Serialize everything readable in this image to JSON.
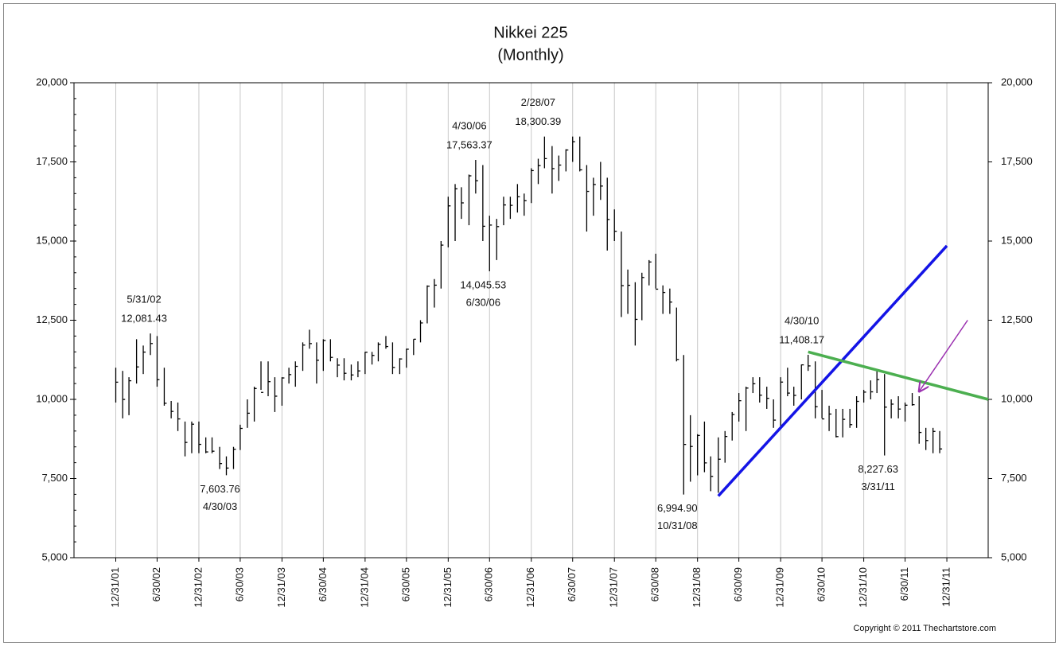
{
  "chart_data": {
    "type": "ohlc",
    "title": "Nikkei 225",
    "subtitle": "(Monthly)",
    "copyright": "Copyright © 2011 Thechartstore.com",
    "grid": "x",
    "bar_color": "#000000",
    "xlim": [
      "6/30/01",
      "6/30/12"
    ],
    "xticks": [
      "12/31/01",
      "6/30/02",
      "12/31/02",
      "6/30/03",
      "12/31/03",
      "6/30/04",
      "12/31/04",
      "6/30/05",
      "12/31/05",
      "6/30/06",
      "12/31/06",
      "6/30/07",
      "12/31/07",
      "6/30/08",
      "12/31/08",
      "6/30/09",
      "12/31/09",
      "6/30/10",
      "12/31/10",
      "6/30/11",
      "12/31/11"
    ],
    "ylim": [
      5000,
      20000
    ],
    "yticks": [
      {
        "value": 5000,
        "label": "5,000"
      },
      {
        "value": 7500,
        "label": "7,500"
      },
      {
        "value": 10000,
        "label": "10,000"
      },
      {
        "value": 12500,
        "label": "12,500"
      },
      {
        "value": 15000,
        "label": "15,000"
      },
      {
        "value": 17500,
        "label": "17,500"
      },
      {
        "value": 20000,
        "label": "20,000"
      }
    ],
    "y2lim": [
      5000,
      20000
    ],
    "y2ticks": [
      {
        "value": 5000,
        "label": "5,000"
      },
      {
        "value": 7500,
        "label": "7,500"
      },
      {
        "value": 10000,
        "label": "10,000"
      },
      {
        "value": 12500,
        "label": "12,500"
      },
      {
        "value": 15000,
        "label": "15,000"
      },
      {
        "value": 17500,
        "label": "17,500"
      },
      {
        "value": 20000,
        "label": "20,000"
      }
    ],
    "x": [
      "12/31/01",
      "1/31/02",
      "2/28/02",
      "3/31/02",
      "4/30/02",
      "5/31/02",
      "6/30/02",
      "7/31/02",
      "8/31/02",
      "9/30/02",
      "10/31/02",
      "11/30/02",
      "12/31/02",
      "1/31/03",
      "2/28/03",
      "3/31/03",
      "4/30/03",
      "5/31/03",
      "6/30/03",
      "7/31/03",
      "8/31/03",
      "9/30/03",
      "10/31/03",
      "11/30/03",
      "12/31/03",
      "1/31/04",
      "2/29/04",
      "3/31/04",
      "4/30/04",
      "5/31/04",
      "6/30/04",
      "7/31/04",
      "8/31/04",
      "9/30/04",
      "10/31/04",
      "11/30/04",
      "12/31/04",
      "1/31/05",
      "2/28/05",
      "3/31/05",
      "4/30/05",
      "5/31/05",
      "6/30/05",
      "7/31/05",
      "8/31/05",
      "9/30/05",
      "10/31/05",
      "11/30/05",
      "12/31/05",
      "1/31/06",
      "2/28/06",
      "3/31/06",
      "4/30/06",
      "5/31/06",
      "6/30/06",
      "7/31/06",
      "8/31/06",
      "9/30/06",
      "10/31/06",
      "11/30/06",
      "12/31/06",
      "1/31/07",
      "2/28/07",
      "3/31/07",
      "4/30/07",
      "5/31/07",
      "6/30/07",
      "7/31/07",
      "8/31/07",
      "9/30/07",
      "10/31/07",
      "11/30/07",
      "12/31/07",
      "1/31/08",
      "2/29/08",
      "3/31/08",
      "4/30/08",
      "5/31/08",
      "6/30/08",
      "7/31/08",
      "8/31/08",
      "9/30/08",
      "10/31/08",
      "11/30/08",
      "12/31/08",
      "1/31/09",
      "2/28/09",
      "3/31/09",
      "4/30/09",
      "5/31/09",
      "6/30/09",
      "7/31/09",
      "8/31/09",
      "9/30/09",
      "10/31/09",
      "11/30/09",
      "12/31/09",
      "1/31/10",
      "2/28/10",
      "3/31/10",
      "4/30/10",
      "5/31/10",
      "6/30/10",
      "7/31/10",
      "8/31/10",
      "9/30/10",
      "10/31/10",
      "11/30/10",
      "12/31/10",
      "1/31/11",
      "2/28/11",
      "3/31/11",
      "4/30/11",
      "5/31/11",
      "6/30/11",
      "7/31/11",
      "8/31/11",
      "9/30/11",
      "10/31/11",
      "11/30/11"
    ],
    "high": [
      11000,
      10900,
      10700,
      11900,
      11700,
      12081,
      12000,
      11000,
      9950,
      9900,
      9300,
      9300,
      9300,
      8800,
      8800,
      8500,
      8200,
      8500,
      9200,
      10000,
      10400,
      11200,
      11200,
      10700,
      10700,
      11000,
      11200,
      11800,
      12200,
      11800,
      11900,
      11900,
      11300,
      11300,
      11100,
      11200,
      11500,
      11500,
      11800,
      12000,
      11800,
      11300,
      11600,
      11900,
      12500,
      13600,
      13800,
      15000,
      16400,
      16800,
      16700,
      17100,
      17563,
      17400,
      15800,
      15700,
      16400,
      16400,
      16800,
      16500,
      17300,
      17600,
      18300,
      18000,
      17700,
      17900,
      18300,
      18300,
      17400,
      17000,
      17500,
      17000,
      16000,
      15300,
      14100,
      13700,
      14000,
      14400,
      14600,
      13600,
      13500,
      12900,
      11400,
      9500,
      8900,
      9300,
      8200,
      8800,
      9000,
      9600,
      10200,
      10400,
      10700,
      10700,
      10400,
      10000,
      10700,
      11000,
      10400,
      11100,
      11408,
      11200,
      10300,
      9800,
      9700,
      9700,
      9700,
      10100,
      10300,
      10600,
      10900,
      10800,
      10000,
      10100,
      9900,
      10200,
      10100,
      9100,
      9100,
      9000
    ],
    "low": [
      9900,
      9400,
      9500,
      10500,
      10800,
      11400,
      10400,
      9800,
      9400,
      9000,
      8200,
      8300,
      8300,
      8300,
      8300,
      7800,
      7604,
      7800,
      8400,
      9100,
      9300,
      10300,
      10100,
      9600,
      9800,
      10500,
      10400,
      10900,
      11600,
      10500,
      10900,
      11200,
      10700,
      10600,
      10600,
      10700,
      10800,
      11100,
      11200,
      11600,
      10800,
      10800,
      11000,
      11400,
      11800,
      12400,
      12900,
      13500,
      14800,
      15000,
      15700,
      15500,
      16500,
      15000,
      14046,
      14400,
      15500,
      15700,
      15900,
      15800,
      16200,
      16800,
      17300,
      16500,
      16900,
      17200,
      17500,
      17200,
      15300,
      15800,
      16300,
      14700,
      15000,
      12600,
      12700,
      11700,
      12500,
      13600,
      13500,
      12700,
      12700,
      11200,
      6995,
      7400,
      7600,
      7700,
      7100,
      7050,
      8000,
      8700,
      9300,
      9000,
      10200,
      9900,
      9700,
      9100,
      9100,
      10100,
      9800,
      10000,
      10900,
      9400,
      9400,
      9000,
      8800,
      8800,
      9100,
      9100,
      9900,
      10000,
      10200,
      8228,
      9400,
      9400,
      9300,
      9800,
      8600,
      8400,
      8300,
      8300
    ],
    "close": [
      10543,
      9998,
      10588,
      11025,
      11493,
      11764,
      10622,
      9877,
      9619,
      9383,
      8640,
      9216,
      8579,
      8340,
      8363,
      7973,
      7831,
      8425,
      9083,
      9563,
      10344,
      10219,
      10560,
      10101,
      10677,
      10783,
      11042,
      11715,
      11762,
      11236,
      11859,
      11326,
      11082,
      10824,
      10771,
      10899,
      11489,
      11388,
      11740,
      11669,
      11009,
      11277,
      11584,
      11900,
      12414,
      13574,
      13607,
      14872,
      16111,
      16650,
      16206,
      17060,
      16906,
      15467,
      15505,
      15457,
      16141,
      16128,
      16399,
      16274,
      17226,
      17383,
      17604,
      17288,
      17400,
      17876,
      18138,
      17249,
      16569,
      16786,
      16737,
      15681,
      15308,
      13592,
      13603,
      12526,
      13850,
      14339,
      13481,
      13377,
      13073,
      11260,
      8577,
      8512,
      8860,
      7994,
      7568,
      8110,
      8828,
      9523,
      9958,
      10357,
      10493,
      10133,
      10034,
      9345,
      10546,
      10198,
      10126,
      11090,
      11057,
      9769,
      9383,
      9537,
      8824,
      9369,
      9202,
      9937,
      10229,
      10238,
      10624,
      9755,
      9850,
      9694,
      9816,
      9833,
      8955,
      8700,
      8988,
      8435
    ],
    "annotations": [
      {
        "x": "5/31/02",
        "value": 12081.43,
        "label": "12,081.43"
      },
      {
        "x": "4/30/03",
        "value": 7603.76,
        "label": "7,603.76"
      },
      {
        "x": "4/30/06",
        "value": 17563.37,
        "label": "17,563.37"
      },
      {
        "x": "6/30/06",
        "value": 14045.53,
        "label": "14,045.53"
      },
      {
        "x": "2/28/07",
        "value": 18300.39,
        "label": "18,300.39"
      },
      {
        "x": "10/31/08",
        "value": 6994.9,
        "label": "6,994.90"
      },
      {
        "x": "4/30/10",
        "value": 11408.17,
        "label": "11,408.17"
      },
      {
        "x": "3/31/11",
        "value": 8227.63,
        "label": "8,227.63"
      }
    ],
    "trend_lines": [
      {
        "color": "#1414e6",
        "x": [
          "3/31/09",
          "12/31/11"
        ],
        "values": [
          6950,
          14850
        ]
      },
      {
        "color": "#4caf50",
        "x": [
          "4/30/10",
          "6/30/12"
        ],
        "values": [
          11500,
          10000
        ]
      },
      {
        "color": "#9b30b0",
        "x": [
          "3/31/12",
          "8/31/11"
        ],
        "values": [
          12500,
          10250
        ],
        "arrow": true
      }
    ]
  }
}
